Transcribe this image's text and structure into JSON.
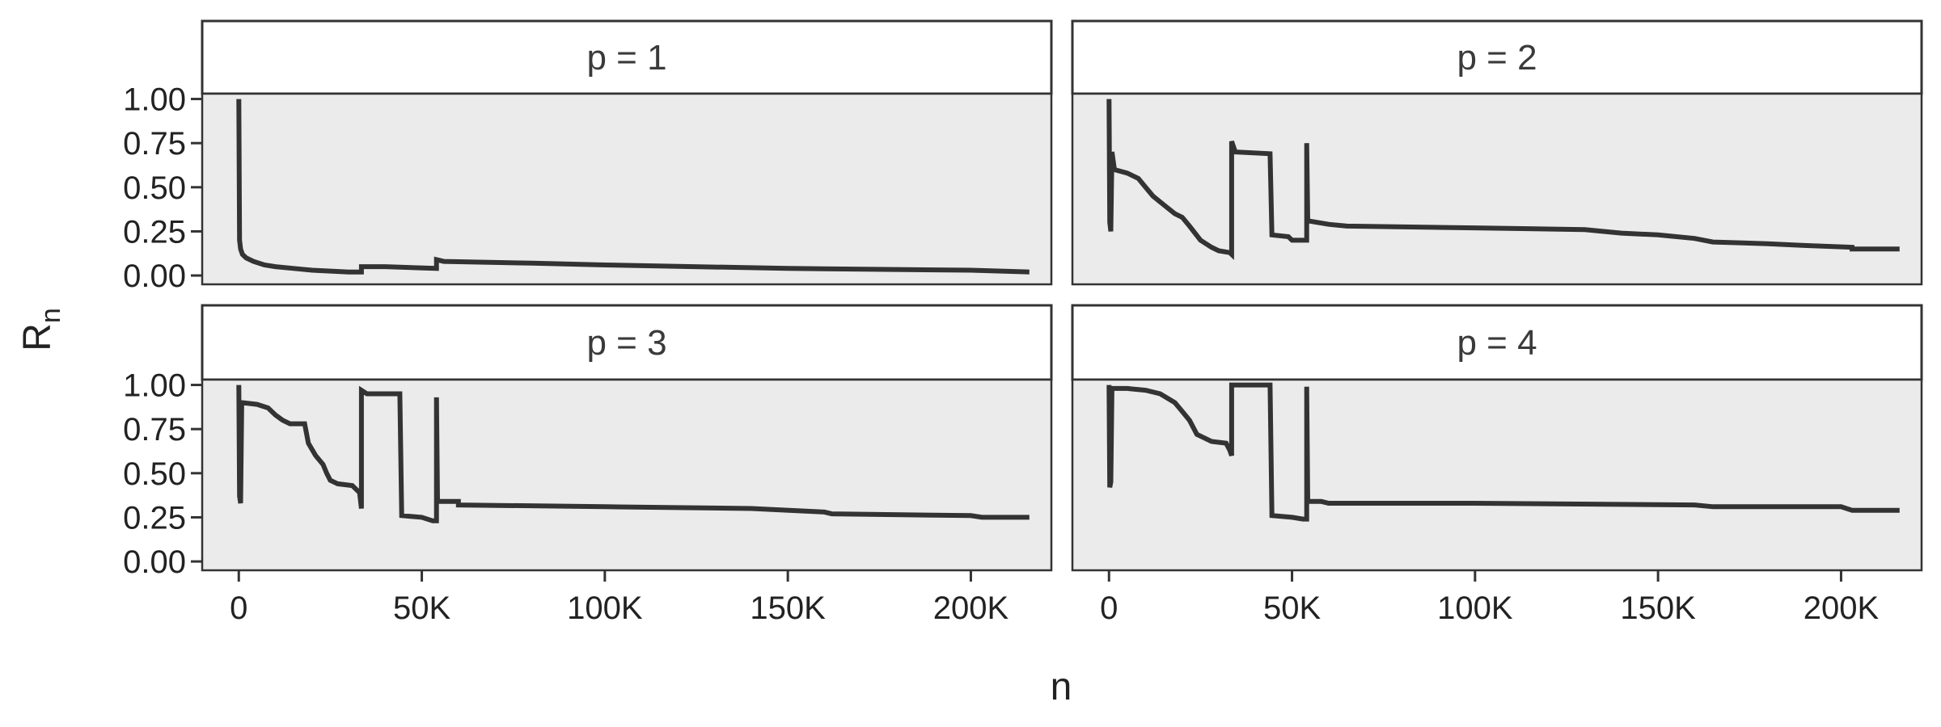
{
  "chart_data": {
    "type": "line",
    "xlabel": "n",
    "ylabel": "R",
    "ylabel_subscript": "n",
    "xlim": [
      -10000,
      222000
    ],
    "ylim": [
      -0.05,
      1.03
    ],
    "x_ticks": [
      0,
      50000,
      100000,
      150000,
      200000
    ],
    "x_tick_labels": [
      "0",
      "50K",
      "100K",
      "150K",
      "200K"
    ],
    "y_ticks": [
      0,
      0.25,
      0.5,
      0.75,
      1.0
    ],
    "y_tick_labels": [
      "0.00",
      "0.25",
      "0.50",
      "0.75",
      "1.00"
    ],
    "panels": [
      {
        "label": "p = 1",
        "points": [
          [
            0,
            1.0
          ],
          [
            200,
            0.2
          ],
          [
            500,
            0.15
          ],
          [
            1000,
            0.12
          ],
          [
            2000,
            0.1
          ],
          [
            4000,
            0.08
          ],
          [
            7000,
            0.06
          ],
          [
            10000,
            0.05
          ],
          [
            15000,
            0.04
          ],
          [
            20000,
            0.03
          ],
          [
            30000,
            0.02
          ],
          [
            33500,
            0.02
          ],
          [
            33500,
            0.05
          ],
          [
            40000,
            0.05
          ],
          [
            54000,
            0.04
          ],
          [
            54000,
            0.09
          ],
          [
            56000,
            0.08
          ],
          [
            80000,
            0.07
          ],
          [
            100000,
            0.06
          ],
          [
            150000,
            0.04
          ],
          [
            200000,
            0.03
          ],
          [
            216000,
            0.02
          ]
        ]
      },
      {
        "label": "p = 2",
        "points": [
          [
            0,
            1.0
          ],
          [
            200,
            0.3
          ],
          [
            500,
            0.25
          ],
          [
            800,
            0.7
          ],
          [
            1500,
            0.6
          ],
          [
            5000,
            0.58
          ],
          [
            8000,
            0.55
          ],
          [
            10000,
            0.5
          ],
          [
            12000,
            0.45
          ],
          [
            15000,
            0.4
          ],
          [
            18000,
            0.35
          ],
          [
            20000,
            0.33
          ],
          [
            22000,
            0.28
          ],
          [
            25000,
            0.2
          ],
          [
            28000,
            0.16
          ],
          [
            30000,
            0.14
          ],
          [
            33000,
            0.13
          ],
          [
            33500,
            0.12
          ],
          [
            33500,
            0.76
          ],
          [
            34500,
            0.7
          ],
          [
            44000,
            0.69
          ],
          [
            44500,
            0.23
          ],
          [
            49000,
            0.22
          ],
          [
            50000,
            0.2
          ],
          [
            54000,
            0.2
          ],
          [
            54000,
            0.75
          ],
          [
            54300,
            0.31
          ],
          [
            60000,
            0.29
          ],
          [
            65000,
            0.28
          ],
          [
            100000,
            0.27
          ],
          [
            130000,
            0.26
          ],
          [
            140000,
            0.24
          ],
          [
            150000,
            0.23
          ],
          [
            160000,
            0.21
          ],
          [
            165000,
            0.19
          ],
          [
            180000,
            0.18
          ],
          [
            190000,
            0.17
          ],
          [
            203000,
            0.16
          ],
          [
            203000,
            0.15
          ],
          [
            216000,
            0.15
          ]
        ]
      },
      {
        "label": "p = 3",
        "points": [
          [
            0,
            1.0
          ],
          [
            200,
            0.37
          ],
          [
            500,
            0.33
          ],
          [
            800,
            0.9
          ],
          [
            5000,
            0.89
          ],
          [
            8000,
            0.87
          ],
          [
            10000,
            0.83
          ],
          [
            12000,
            0.8
          ],
          [
            14000,
            0.78
          ],
          [
            18000,
            0.78
          ],
          [
            19000,
            0.67
          ],
          [
            21000,
            0.6
          ],
          [
            23000,
            0.55
          ],
          [
            24000,
            0.5
          ],
          [
            25000,
            0.46
          ],
          [
            27000,
            0.44
          ],
          [
            31000,
            0.43
          ],
          [
            33000,
            0.39
          ],
          [
            33500,
            0.3
          ],
          [
            33500,
            0.97
          ],
          [
            35000,
            0.95
          ],
          [
            44000,
            0.95
          ],
          [
            44500,
            0.26
          ],
          [
            50000,
            0.25
          ],
          [
            53000,
            0.23
          ],
          [
            54000,
            0.23
          ],
          [
            54000,
            0.93
          ],
          [
            54300,
            0.34
          ],
          [
            60000,
            0.34
          ],
          [
            60000,
            0.32
          ],
          [
            100000,
            0.31
          ],
          [
            140000,
            0.3
          ],
          [
            160000,
            0.28
          ],
          [
            162000,
            0.27
          ],
          [
            200000,
            0.26
          ],
          [
            203000,
            0.25
          ],
          [
            216000,
            0.25
          ]
        ]
      },
      {
        "label": "p = 4",
        "points": [
          [
            0,
            1.0
          ],
          [
            200,
            0.42
          ],
          [
            500,
            0.45
          ],
          [
            800,
            0.98
          ],
          [
            5000,
            0.98
          ],
          [
            10000,
            0.97
          ],
          [
            14000,
            0.95
          ],
          [
            18000,
            0.9
          ],
          [
            20000,
            0.85
          ],
          [
            22000,
            0.8
          ],
          [
            24000,
            0.72
          ],
          [
            26000,
            0.7
          ],
          [
            28000,
            0.68
          ],
          [
            32000,
            0.67
          ],
          [
            33000,
            0.63
          ],
          [
            33500,
            0.6
          ],
          [
            33500,
            1.0
          ],
          [
            35000,
            1.0
          ],
          [
            44000,
            1.0
          ],
          [
            44500,
            0.26
          ],
          [
            50000,
            0.25
          ],
          [
            53000,
            0.24
          ],
          [
            54000,
            0.24
          ],
          [
            54000,
            0.99
          ],
          [
            54300,
            0.34
          ],
          [
            58000,
            0.34
          ],
          [
            60000,
            0.33
          ],
          [
            100000,
            0.33
          ],
          [
            160000,
            0.32
          ],
          [
            165000,
            0.31
          ],
          [
            200000,
            0.31
          ],
          [
            203000,
            0.29
          ],
          [
            216000,
            0.29
          ]
        ]
      }
    ]
  }
}
